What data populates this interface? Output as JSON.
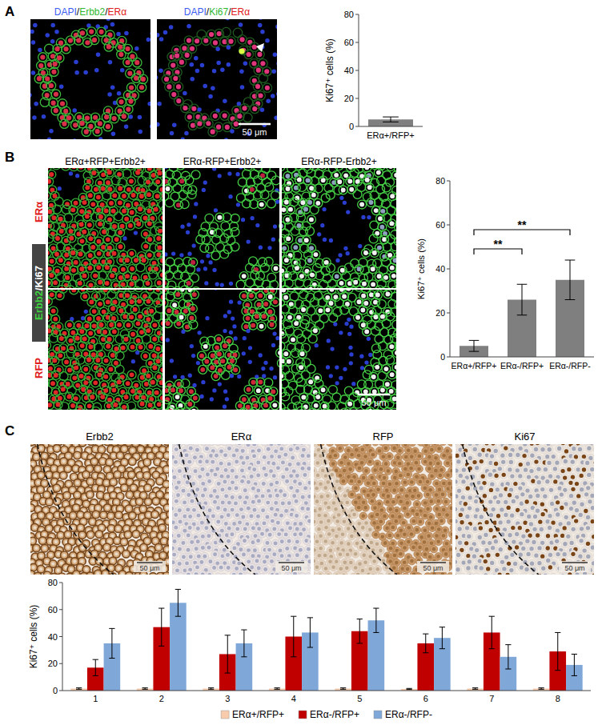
{
  "figure": {
    "panels": [
      {
        "letter": "A",
        "images": [
          {
            "label": [
              {
                "text": "DAPI",
                "color": "#3a5cf0"
              },
              {
                "text": "/",
                "color": "#000000"
              },
              {
                "text": "Erbb2",
                "color": "#2fb82f"
              },
              {
                "text": "/",
                "color": "#000000"
              },
              {
                "text": "ERα",
                "color": "#e02020"
              }
            ]
          },
          {
            "label": [
              {
                "text": "DAPI",
                "color": "#3a5cf0"
              },
              {
                "text": "/",
                "color": "#000000"
              },
              {
                "text": "Ki67",
                "color": "#2fb82f"
              },
              {
                "text": "/",
                "color": "#000000"
              },
              {
                "text": "ERα",
                "color": "#e02020"
              }
            ],
            "scale_bar": "50 μm"
          }
        ]
      },
      {
        "letter": "B",
        "column_titles": [
          "ERα+RFP+Erbb2+",
          "ERα-RFP+Erbb2+",
          "ERα-RFP-Erbb2+"
        ],
        "row_labels": [
          [
            {
              "text": "ERα",
              "color": "#e02020"
            }
          ],
          [
            {
              "text": "Erbb2",
              "color": "#3fd23f"
            },
            {
              "text": "/",
              "color": "#ffffff"
            },
            {
              "text": "Ki67",
              "color": "#ffffff"
            }
          ],
          [
            {
              "text": "RFP",
              "color": "#e02020"
            }
          ]
        ],
        "scale_bar": "50 μm"
      },
      {
        "letter": "C",
        "image_titles": [
          "Erbb2",
          "ERα",
          "RFP",
          "Ki67"
        ],
        "scale_bar": "50 μm"
      }
    ]
  },
  "chart_data": [
    {
      "type": "bar",
      "y_label": "Ki67⁺ cells (%)",
      "categories": [
        "ERα+/RFP+"
      ],
      "series": [
        {
          "values": [
            5
          ],
          "errors": [
            1.8
          ],
          "color": "#7f7f7f"
        }
      ],
      "ylim": [
        0,
        80
      ],
      "yticks": [
        0,
        20,
        40,
        60,
        80
      ]
    },
    {
      "type": "bar",
      "y_label": "Ki67⁺ cells (%)",
      "categories": [
        "ERα+/RFP+",
        "ERα-/RFP+",
        "ERα-/RFP-"
      ],
      "series": [
        {
          "values": [
            5,
            26,
            35
          ],
          "errors": [
            2.5,
            7,
            9
          ],
          "color": "#7f7f7f"
        }
      ],
      "ylim": [
        0,
        80
      ],
      "yticks": [
        0,
        20,
        40,
        60,
        80
      ],
      "annotations": [
        {
          "text": "**",
          "between": [
            "ERα+/RFP+",
            "ERα-/RFP+"
          ]
        },
        {
          "text": "**",
          "between": [
            "ERα+/RFP+",
            "ERα-/RFP-"
          ]
        }
      ]
    },
    {
      "type": "bar",
      "y_label": "Ki67⁺ cells (%)",
      "categories": [
        "1",
        "2",
        "3",
        "4",
        "5",
        "6",
        "7",
        "8"
      ],
      "series": [
        {
          "name": "ERα+/RFP+",
          "color": "#f8cbad",
          "values": [
            1.5,
            1.5,
            1.5,
            1.5,
            1.5,
            1.2,
            1.5,
            1.5
          ],
          "errors": [
            0.5,
            0.5,
            0.5,
            0.5,
            0.5,
            0.4,
            0.5,
            0.5
          ]
        },
        {
          "name": "ERα-/RFP+",
          "color": "#c00000",
          "values": [
            17,
            47,
            27,
            40,
            44,
            35,
            43,
            29
          ],
          "errors": [
            6,
            14,
            14,
            15,
            9,
            7,
            12,
            14
          ]
        },
        {
          "name": "ERα-/RFP-",
          "color": "#7fa7d8",
          "values": [
            35,
            65,
            35,
            43,
            52,
            39,
            25,
            19
          ],
          "errors": [
            11,
            10,
            10,
            11,
            9,
            8,
            9,
            8
          ]
        }
      ],
      "ylim": [
        0,
        80
      ],
      "yticks": [
        0,
        20,
        40,
        60,
        80
      ],
      "legend": "bottom"
    }
  ]
}
